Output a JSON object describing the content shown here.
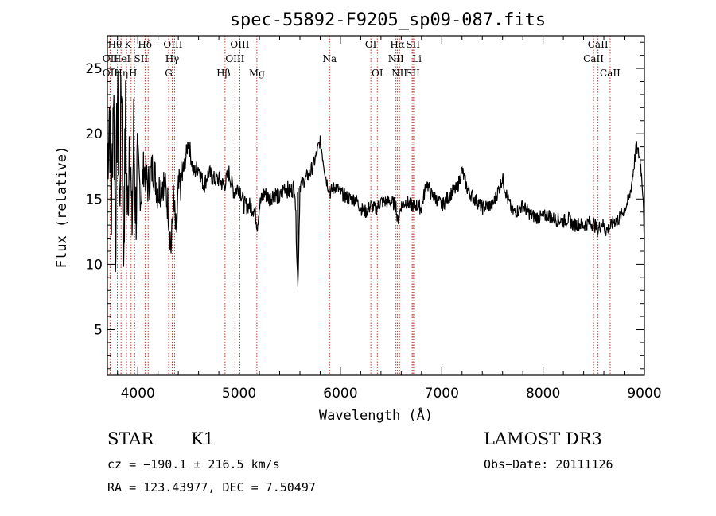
{
  "chart_data": {
    "type": "line",
    "title": "spec-55892-F9205_sp09-087.fits",
    "xlabel": "Wavelength (Å)",
    "ylabel": "Flux (relative)",
    "xlim": [
      3700,
      9000
    ],
    "ylim": [
      1.5,
      27.5
    ],
    "x_ticks": [
      4000,
      5000,
      6000,
      7000,
      8000,
      9000
    ],
    "y_ticks": [
      5,
      10,
      15,
      20,
      25
    ],
    "series": [
      {
        "name": "spectrum",
        "color": "#000000",
        "anchors": [
          [
            3700,
            18
          ],
          [
            3720,
            22
          ],
          [
            3740,
            14
          ],
          [
            3760,
            24
          ],
          [
            3780,
            12
          ],
          [
            3800,
            23
          ],
          [
            3820,
            14
          ],
          [
            3840,
            25
          ],
          [
            3860,
            11
          ],
          [
            3880,
            21
          ],
          [
            3900,
            13
          ],
          [
            3920,
            22
          ],
          [
            3940,
            12
          ],
          [
            3960,
            20
          ],
          [
            3980,
            14
          ],
          [
            4000,
            18
          ],
          [
            4030,
            15
          ],
          [
            4060,
            17.5
          ],
          [
            4100,
            16
          ],
          [
            4150,
            17.5
          ],
          [
            4200,
            15.5
          ],
          [
            4250,
            16.5
          ],
          [
            4300,
            14.5
          ],
          [
            4330,
            11
          ],
          [
            4350,
            15
          ],
          [
            4380,
            12
          ],
          [
            4400,
            15.5
          ],
          [
            4450,
            17
          ],
          [
            4500,
            19.5
          ],
          [
            4550,
            17
          ],
          [
            4600,
            17.5
          ],
          [
            4650,
            16
          ],
          [
            4700,
            17
          ],
          [
            4750,
            16.5
          ],
          [
            4800,
            16.5
          ],
          [
            4850,
            16
          ],
          [
            4900,
            17
          ],
          [
            4950,
            15.5
          ],
          [
            5000,
            16
          ],
          [
            5050,
            14.5
          ],
          [
            5100,
            14.5
          ],
          [
            5150,
            14.2
          ],
          [
            5180,
            13
          ],
          [
            5200,
            14.5
          ],
          [
            5250,
            15.5
          ],
          [
            5300,
            15
          ],
          [
            5350,
            15.5
          ],
          [
            5400,
            15
          ],
          [
            5450,
            16
          ],
          [
            5500,
            15.5
          ],
          [
            5550,
            16
          ],
          [
            5580,
            8.3
          ],
          [
            5600,
            16
          ],
          [
            5650,
            16.5
          ],
          [
            5700,
            17
          ],
          [
            5750,
            18
          ],
          [
            5800,
            19.5
          ],
          [
            5830,
            18
          ],
          [
            5860,
            16.5
          ],
          [
            5900,
            15.5
          ],
          [
            5950,
            16
          ],
          [
            6000,
            15.5
          ],
          [
            6050,
            15.2
          ],
          [
            6100,
            15
          ],
          [
            6150,
            15
          ],
          [
            6200,
            14.3
          ],
          [
            6250,
            14
          ],
          [
            6300,
            14.5
          ],
          [
            6350,
            14.2
          ],
          [
            6400,
            14.8
          ],
          [
            6450,
            14.8
          ],
          [
            6500,
            14.8
          ],
          [
            6550,
            14.5
          ],
          [
            6563,
            13.2
          ],
          [
            6600,
            14.5
          ],
          [
            6650,
            14.8
          ],
          [
            6700,
            14.5
          ],
          [
            6750,
            14.5
          ],
          [
            6800,
            14.3
          ],
          [
            6850,
            16.3
          ],
          [
            6900,
            15.3
          ],
          [
            6950,
            15
          ],
          [
            7000,
            14.5
          ],
          [
            7050,
            15
          ],
          [
            7100,
            15.5
          ],
          [
            7150,
            15.8
          ],
          [
            7200,
            17.2
          ],
          [
            7250,
            15.8
          ],
          [
            7300,
            15.2
          ],
          [
            7350,
            14.8
          ],
          [
            7400,
            14.3
          ],
          [
            7450,
            14.5
          ],
          [
            7500,
            14.5
          ],
          [
            7550,
            15.5
          ],
          [
            7600,
            16.6
          ],
          [
            7650,
            15
          ],
          [
            7700,
            14
          ],
          [
            7750,
            14.1
          ],
          [
            7800,
            14.5
          ],
          [
            7850,
            14
          ],
          [
            7900,
            13.7
          ],
          [
            7950,
            13.6
          ],
          [
            8000,
            13.6
          ],
          [
            8050,
            13.8
          ],
          [
            8100,
            13.5
          ],
          [
            8150,
            13.4
          ],
          [
            8200,
            13.3
          ],
          [
            8250,
            13.5
          ],
          [
            8300,
            13
          ],
          [
            8350,
            13.1
          ],
          [
            8400,
            13
          ],
          [
            8450,
            13.2
          ],
          [
            8500,
            13.1
          ],
          [
            8540,
            12.6
          ],
          [
            8580,
            13.2
          ],
          [
            8620,
            12.6
          ],
          [
            8660,
            12.8
          ],
          [
            8700,
            13.3
          ],
          [
            8750,
            13.5
          ],
          [
            8800,
            14.2
          ],
          [
            8850,
            15
          ],
          [
            8880,
            16.5
          ],
          [
            8920,
            19
          ],
          [
            8960,
            18
          ],
          [
            8990,
            15
          ],
          [
            9000,
            11.5
          ]
        ]
      }
    ],
    "lines": [
      {
        "label": "Hθ",
        "wave": 3798,
        "row": 0,
        "dx": -3
      },
      {
        "label": "OII",
        "wave": 3727,
        "row": 1,
        "dx": 0
      },
      {
        "label": "HeI",
        "wave": 3889,
        "row": 1,
        "dx": -6
      },
      {
        "label": "OII",
        "wave": 3727,
        "row": 2,
        "dx": 0
      },
      {
        "label": "Hη",
        "wave": 3835,
        "row": 2,
        "dx": 0
      },
      {
        "label": "K",
        "wave": 3934,
        "row": 0,
        "dx": -4
      },
      {
        "label": "SII",
        "wave": 4072,
        "row": 1,
        "dx": -5
      },
      {
        "label": "Hδ",
        "wave": 4102,
        "row": 0,
        "dx": -4
      },
      {
        "label": "H",
        "wave": 3969,
        "row": 2,
        "dx": -2
      },
      {
        "label": "OIII",
        "wave": 4363,
        "row": 0,
        "dx": -2
      },
      {
        "label": "Hγ",
        "wave": 4340,
        "row": 1,
        "dx": 0
      },
      {
        "label": "G",
        "wave": 4305,
        "row": 2,
        "dx": 0
      },
      {
        "label": "OIII",
        "wave": 5007,
        "row": 0,
        "dx": 0
      },
      {
        "label": "OIII",
        "wave": 4959,
        "row": 1,
        "dx": 0
      },
      {
        "label": "Hβ",
        "wave": 4861,
        "row": 2,
        "dx": -2
      },
      {
        "label": "Mg",
        "wave": 5175,
        "row": 2,
        "dx": 0
      },
      {
        "label": "Na",
        "wave": 5893,
        "row": 1,
        "dx": 0
      },
      {
        "label": "OI",
        "wave": 6300,
        "row": 0,
        "dx": 0
      },
      {
        "label": "OI",
        "wave": 6364,
        "row": 2,
        "dx": 0
      },
      {
        "label": "Hα",
        "wave": 6563,
        "row": 0,
        "dx": 0
      },
      {
        "label": "SII",
        "wave": 6717,
        "row": 0,
        "dx": 0
      },
      {
        "label": "NII",
        "wave": 6548,
        "row": 1,
        "dx": 0
      },
      {
        "label": "Li",
        "wave": 6708,
        "row": 1,
        "dx": 6
      },
      {
        "label": "NII",
        "wave": 6583,
        "row": 2,
        "dx": 0
      },
      {
        "label": "SII",
        "wave": 6731,
        "row": 2,
        "dx": -2
      },
      {
        "label": "CaII",
        "wave": 8542,
        "row": 0,
        "dx": 0
      },
      {
        "label": "CaII",
        "wave": 8498,
        "row": 1,
        "dx": 0
      },
      {
        "label": "CaII",
        "wave": 8662,
        "row": 2,
        "dx": 0
      }
    ],
    "line_color": "#c0392b"
  },
  "info": {
    "object_type": "STAR",
    "subclass": "K1",
    "survey": "LAMOST DR3",
    "redshift": "cz = −190.1 ± 216.5 km/s",
    "obs_date": "Obs−Date: 20111126",
    "coords": "RA = 123.43977, DEC =    7.50497"
  }
}
